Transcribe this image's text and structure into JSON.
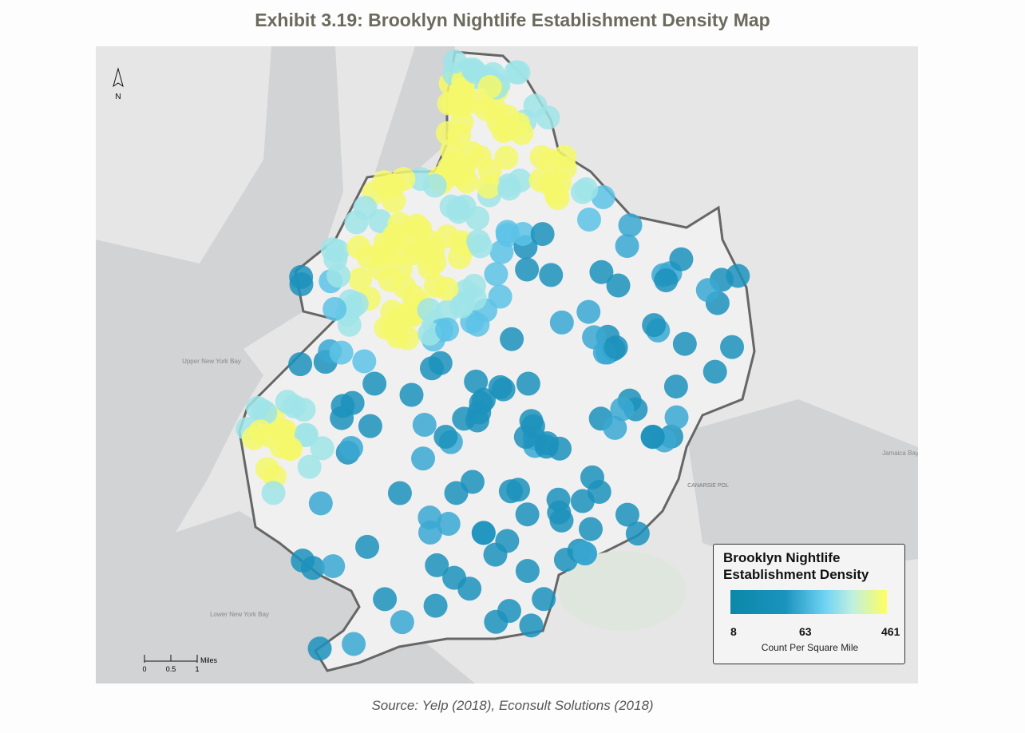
{
  "header": {
    "title": "Exhibit 3.19: Brooklyn Nightlife Establishment Density Map"
  },
  "map": {
    "north": "N",
    "labels": [
      "Upper New York Bay",
      "Lower New York Bay",
      "CANARSIE POL",
      "Jamaica Bay"
    ],
    "scale": {
      "ticks": [
        "0",
        "0.5",
        "1"
      ],
      "unit": "Miles"
    }
  },
  "legend": {
    "title": "Brooklyn Nightlife Establishment Density",
    "ticks": [
      8,
      63,
      461
    ],
    "caption": "Count Per Square Mile"
  },
  "footer": {
    "source": "Source: Yelp (2018), Econsult Solutions (2018)"
  }
}
